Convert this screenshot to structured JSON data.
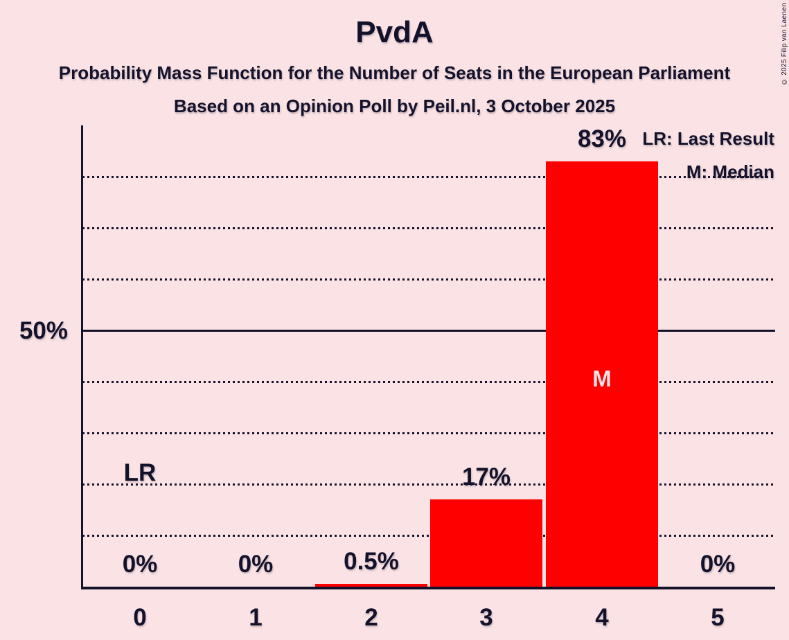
{
  "title": "PvdA",
  "subtitle1": "Probability Mass Function for the Number of Seats in the European Parliament",
  "subtitle2": "Based on an Opinion Poll by Peil.nl, 3 October 2025",
  "copyright": "© 2025 Filip van Laenen",
  "legend": {
    "lr": "LR: Last Result",
    "m": "M: Median"
  },
  "y_axis": {
    "label_50": "50%"
  },
  "annotations": {
    "last_result": {
      "label": "LR",
      "seat_index": 0
    },
    "median": {
      "label": "M",
      "seat_index": 4
    }
  },
  "colors": {
    "background": "#fbe3e5",
    "bar": "#ff0000",
    "ink": "#14122b"
  },
  "chart_data": {
    "type": "bar",
    "title": "PvdA",
    "categories": [
      "0",
      "1",
      "2",
      "3",
      "4",
      "5"
    ],
    "values": [
      0,
      0,
      0.5,
      17,
      83,
      0
    ],
    "bar_labels": [
      "0%",
      "0%",
      "0.5%",
      "17%",
      "83%",
      "0%"
    ],
    "xlabel": "",
    "ylabel": "",
    "ylim": [
      0,
      90
    ],
    "gridlines_pct": [
      10,
      20,
      30,
      40,
      60,
      70,
      80
    ],
    "solid_line_pct": 50,
    "grid": "dotted",
    "legend_position": "top-right"
  }
}
